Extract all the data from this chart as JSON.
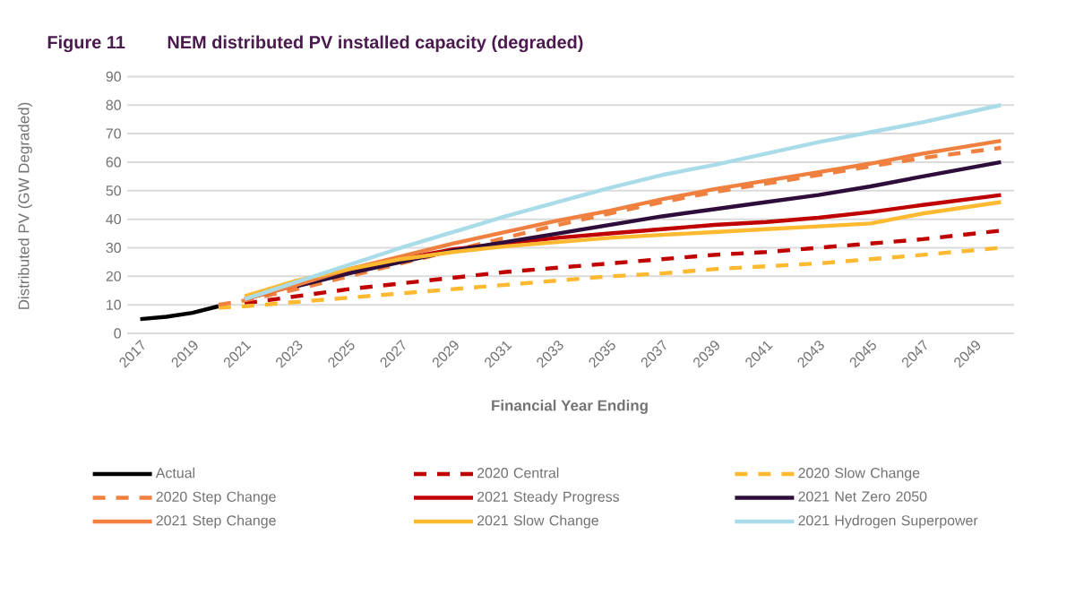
{
  "chart_data": {
    "type": "line",
    "title": "Figure 11",
    "subtitle": "NEM distributed PV installed capacity (degraded)",
    "xlabel": "Financial Year Ending",
    "ylabel": "Distributed PV (GW Degraded)",
    "xlim": [
      2016.5,
      2050.5
    ],
    "xticks": [
      2017,
      2019,
      2021,
      2023,
      2025,
      2027,
      2029,
      2031,
      2033,
      2035,
      2037,
      2039,
      2041,
      2043,
      2045,
      2047,
      2049
    ],
    "ylim": [
      0,
      90
    ],
    "yticks": [
      0,
      10,
      20,
      30,
      40,
      50,
      60,
      70,
      80,
      90
    ],
    "grid": "y",
    "legend": "bottom",
    "line_style": "solid",
    "series": [
      {
        "name": "Actual",
        "color": "#000000",
        "x": [
          2017,
          2018,
          2019,
          2020
        ],
        "values": [
          5,
          5.8,
          7.2,
          9.5
        ]
      },
      {
        "name": "2020 Central",
        "color": "#c00000",
        "line_style": "dashed",
        "x": [
          2021,
          2023,
          2025,
          2027,
          2029,
          2031,
          2033,
          2035,
          2037,
          2039,
          2041,
          2043,
          2045,
          2047,
          2050
        ],
        "values": [
          10.5,
          13,
          15.5,
          17.5,
          19.5,
          21.5,
          23,
          24.5,
          26,
          27.5,
          28.5,
          30,
          31.5,
          33,
          36
        ]
      },
      {
        "name": "2020 Slow Change",
        "color": "#fdb92f",
        "line_style": "dashed",
        "x": [
          2020,
          2021,
          2023,
          2025,
          2027,
          2029,
          2031,
          2033,
          2035,
          2037,
          2039,
          2041,
          2043,
          2045,
          2047,
          2050
        ],
        "values": [
          9,
          9.5,
          11,
          12.5,
          14,
          15.5,
          17,
          18.5,
          20,
          21,
          22.5,
          23.5,
          24.5,
          26,
          27.5,
          30
        ]
      },
      {
        "name": "2020 Step Change",
        "color": "#f08040",
        "line_style": "dashed",
        "x": [
          2020,
          2021,
          2023,
          2025,
          2027,
          2029,
          2031,
          2033,
          2035,
          2037,
          2039,
          2041,
          2043,
          2045,
          2047,
          2050
        ],
        "values": [
          10,
          11.5,
          15.5,
          20,
          24.5,
          29,
          33.5,
          38,
          42,
          46,
          49.5,
          52.5,
          55.5,
          58.5,
          61.5,
          65
        ]
      },
      {
        "name": "2021 Steady Progress",
        "color": "#c00000",
        "x": [
          2021,
          2023,
          2025,
          2027,
          2029,
          2031,
          2033,
          2035,
          2037,
          2039,
          2041,
          2043,
          2045,
          2047,
          2050
        ],
        "values": [
          12,
          17,
          22,
          26,
          29.5,
          31.5,
          33.5,
          35,
          36.5,
          38,
          39,
          40.5,
          42.5,
          45,
          48.5
        ]
      },
      {
        "name": "2021 Net Zero 2050",
        "color": "#2e0d3a",
        "x": [
          2023,
          2025,
          2027,
          2029,
          2031,
          2033,
          2035,
          2037,
          2039,
          2041,
          2043,
          2045,
          2047,
          2050
        ],
        "values": [
          16.5,
          21,
          25,
          29,
          32,
          35,
          38,
          41,
          43.5,
          46,
          48.5,
          51.5,
          55,
          60
        ]
      },
      {
        "name": "2021 Step Change",
        "color": "#f08040",
        "x": [
          2021,
          2023,
          2025,
          2027,
          2029,
          2031,
          2033,
          2035,
          2037,
          2039,
          2041,
          2043,
          2045,
          2047,
          2050
        ],
        "values": [
          12,
          17,
          22.5,
          27,
          31.5,
          35.5,
          39.5,
          43,
          47,
          50.5,
          53.5,
          56.5,
          59.5,
          63,
          67.5
        ]
      },
      {
        "name": "2021 Slow Change",
        "color": "#fdb92f",
        "x": [
          2021,
          2023,
          2025,
          2027,
          2029,
          2031,
          2033,
          2035,
          2037,
          2039,
          2041,
          2043,
          2045,
          2047,
          2050
        ],
        "values": [
          13,
          18.5,
          22.5,
          26,
          28.5,
          30.5,
          32,
          33.5,
          34.5,
          35.5,
          36.5,
          37.5,
          38.5,
          42,
          46
        ]
      },
      {
        "name": "2021 Hydrogen Superpower",
        "color": "#a9dbe8",
        "x": [
          2021,
          2023,
          2025,
          2027,
          2029,
          2031,
          2033,
          2035,
          2037,
          2039,
          2041,
          2043,
          2045,
          2047,
          2050
        ],
        "values": [
          12,
          18,
          24,
          30,
          35.5,
          41,
          46,
          51,
          55.5,
          59,
          63,
          67,
          70.5,
          74,
          80
        ]
      }
    ]
  }
}
